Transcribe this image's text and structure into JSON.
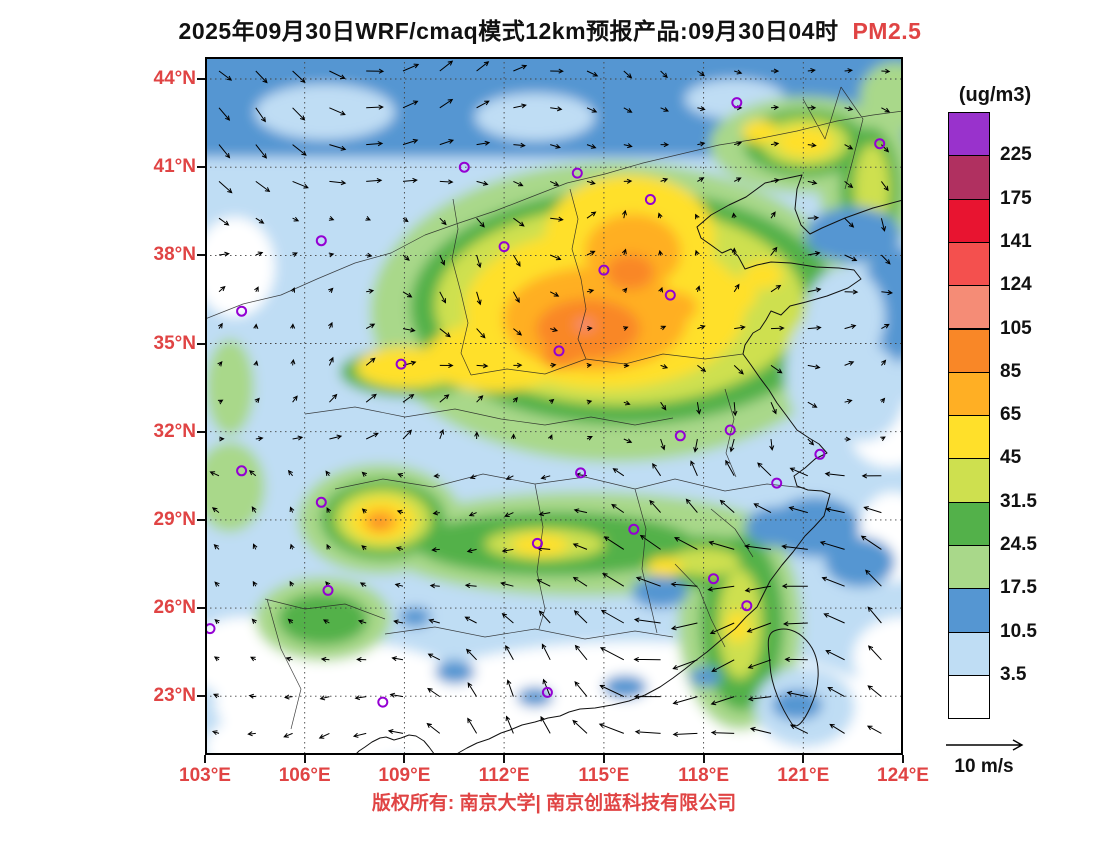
{
  "theme": {
    "accent_red": "#E04444",
    "marker_purple": "#9400D3"
  },
  "title": {
    "main": "2025年09月30日WRF/cmaq模式12km预报产品:09月30日04时",
    "pollutant": "PM2.5"
  },
  "colorbar": {
    "unit": "(ug/m3)",
    "tick_labels": [
      "225",
      "175",
      "141",
      "124",
      "105",
      "85",
      "65",
      "45",
      "31.5",
      "24.5",
      "17.5",
      "10.5",
      "3.5"
    ],
    "colors_top_to_bottom": [
      "#9932CC",
      "#B03060",
      "#E81430",
      "#F4504E",
      "#F58C76",
      "#F98727",
      "#FFAF24",
      "#FFE02A",
      "#CEE04F",
      "#53B14A",
      "#A9D88A",
      "#5596D2",
      "#BFDDF4",
      "#FFFFFF"
    ]
  },
  "axes": {
    "lat_ticks": [
      "44°N",
      "41°N",
      "38°N",
      "35°N",
      "32°N",
      "29°N",
      "26°N",
      "23°N"
    ],
    "lon_ticks": [
      "103°E",
      "106°E",
      "109°E",
      "112°E",
      "115°E",
      "118°E",
      "121°E",
      "124°E"
    ]
  },
  "wind": {
    "reference_label": "10 m/s"
  },
  "footer": {
    "copyright": "版权所有: 南京大学| 南京创蓝科技有限公司"
  },
  "map": {
    "lon_min": 103,
    "lon_max": 124,
    "lat_min": 21.0,
    "lat_max": 44.75,
    "city_markers_lonlat": [
      [
        119.0,
        43.2
      ],
      [
        114.2,
        40.8
      ],
      [
        110.8,
        41.0
      ],
      [
        123.3,
        41.8
      ],
      [
        116.4,
        39.9
      ],
      [
        106.5,
        38.5
      ],
      [
        112.0,
        38.3
      ],
      [
        115.0,
        37.5
      ],
      [
        104.1,
        36.1
      ],
      [
        108.9,
        34.3
      ],
      [
        113.65,
        34.75
      ],
      [
        117.0,
        36.65
      ],
      [
        118.8,
        32.06
      ],
      [
        117.3,
        31.86
      ],
      [
        121.5,
        31.23
      ],
      [
        114.3,
        30.6
      ],
      [
        120.2,
        30.25
      ],
      [
        106.5,
        29.6
      ],
      [
        115.9,
        28.68
      ],
      [
        113.0,
        28.2
      ],
      [
        104.1,
        30.67
      ],
      [
        106.7,
        26.6
      ],
      [
        103.15,
        25.3
      ],
      [
        118.3,
        27.0
      ],
      [
        119.3,
        26.08
      ],
      [
        108.35,
        22.8
      ],
      [
        113.3,
        23.13
      ]
    ]
  }
}
